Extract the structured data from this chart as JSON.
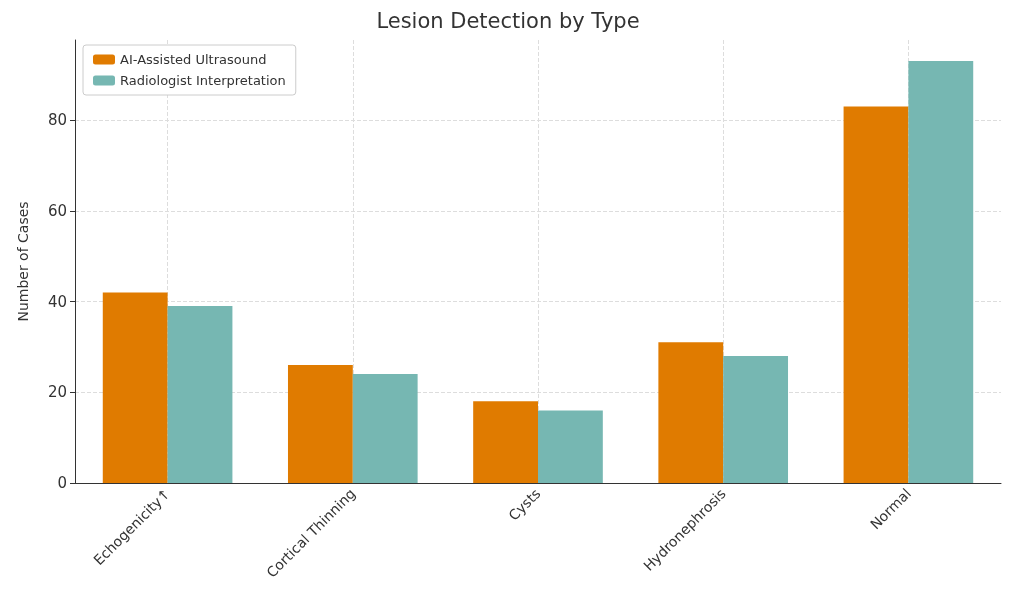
{
  "chart_data": {
    "type": "bar",
    "title": "Lesion Detection by Type",
    "ylabel": "Number of Cases",
    "categories": [
      "Echogenicity↑",
      "Cortical Thinning",
      "Cysts",
      "Hydronephrosis",
      "Normal"
    ],
    "series": [
      {
        "name": "AI-Assisted Ultrasound",
        "color": "#e07b00",
        "values": [
          42,
          26,
          18,
          31,
          83
        ]
      },
      {
        "name": "Radiologist Interpretation",
        "color": "#76b7b2",
        "values": [
          39,
          24,
          16,
          28,
          93
        ]
      }
    ],
    "ylim": [
      0,
      97.65
    ],
    "yticks": [
      0,
      20,
      40,
      60,
      80
    ],
    "grid": true,
    "legend": "top left"
  }
}
